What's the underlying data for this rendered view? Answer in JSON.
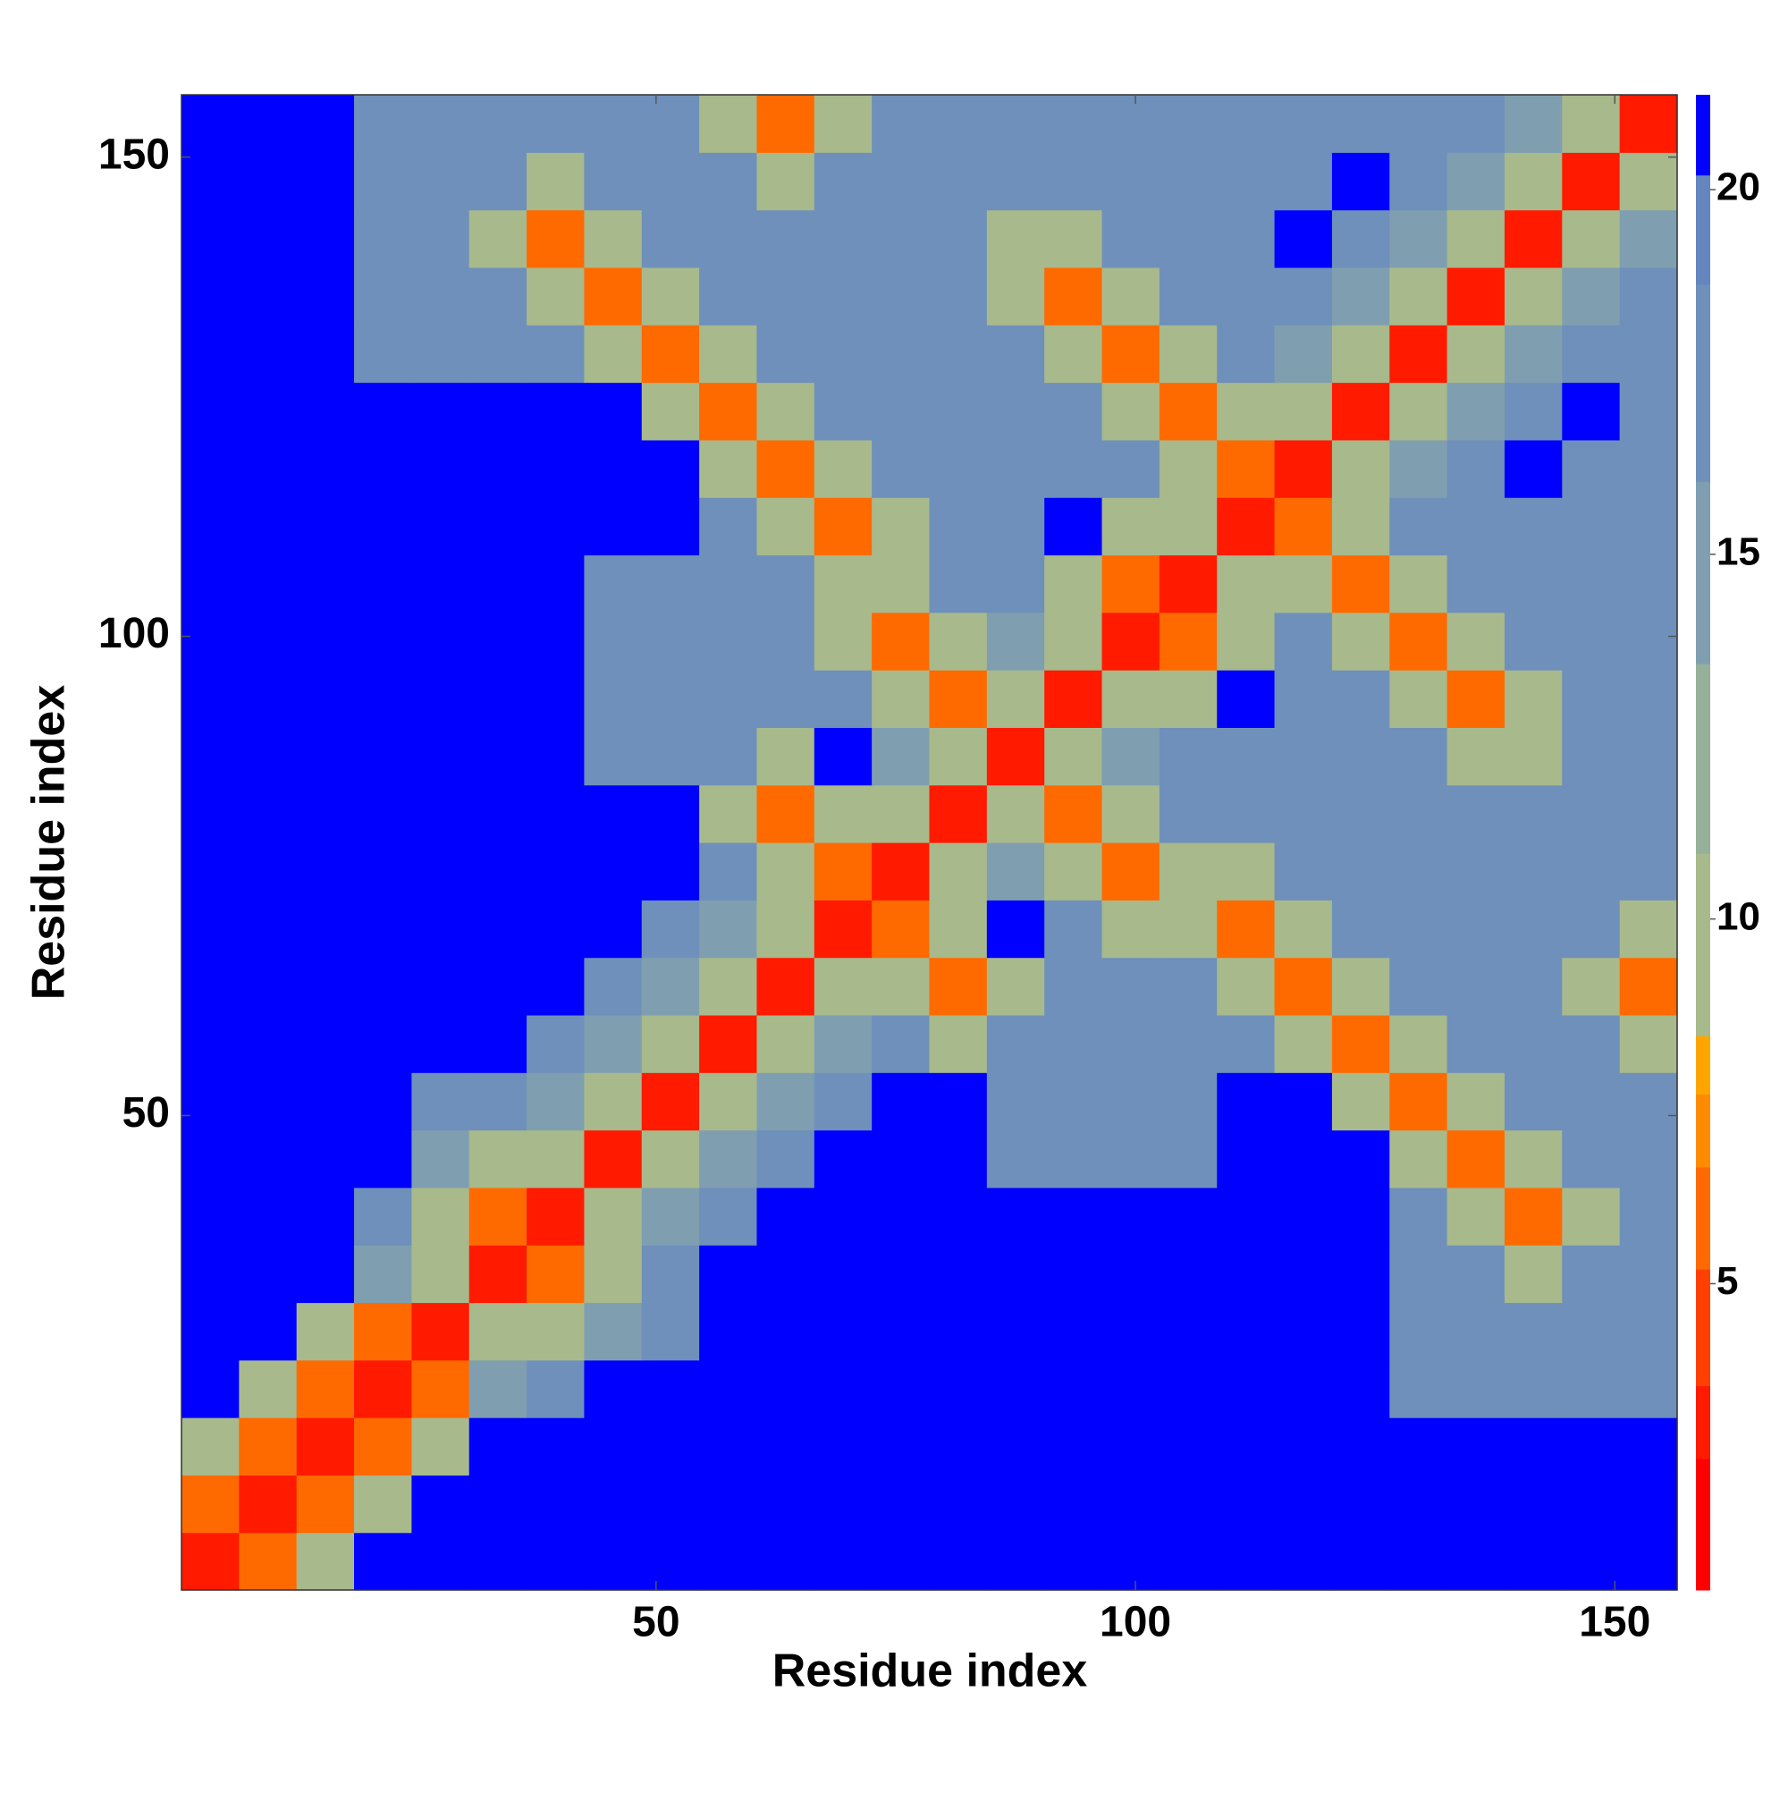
{
  "chart_data": {
    "type": "heatmap",
    "xlabel": "Residue index",
    "ylabel": "Residue index",
    "xlim": [
      0.5,
      156.5
    ],
    "ylim": [
      0.5,
      156.5
    ],
    "xticks": [
      50,
      100,
      150
    ],
    "yticks": [
      50,
      100,
      150
    ],
    "x": [
      3.5,
      9.5,
      15.5,
      21.5,
      27.5,
      33.5,
      39.5,
      45.5,
      51.5,
      57.5,
      63.5,
      69.5,
      75.5,
      81.5,
      87.5,
      93.5,
      99.5,
      105.5,
      111.5,
      117.5,
      123.5,
      129.5,
      135.5,
      141.5,
      147.5,
      153.5
    ],
    "y": [
      3.5,
      9.5,
      15.5,
      21.5,
      27.5,
      33.5,
      39.5,
      45.5,
      51.5,
      57.5,
      63.5,
      69.5,
      75.5,
      81.5,
      87.5,
      93.5,
      99.5,
      105.5,
      111.5,
      117.5,
      123.5,
      129.5,
      135.5,
      141.5,
      147.5,
      153.5
    ],
    "z": [
      [
        3,
        6,
        10,
        21,
        21,
        21,
        21,
        21,
        21,
        21,
        21,
        21,
        21,
        21,
        21,
        21,
        21,
        21,
        21,
        21,
        21,
        21,
        21,
        21,
        21,
        21
      ],
      [
        6,
        3,
        6,
        10,
        21,
        21,
        21,
        21,
        21,
        21,
        21,
        21,
        21,
        21,
        21,
        21,
        21,
        21,
        21,
        21,
        21,
        21,
        21,
        21,
        21,
        21
      ],
      [
        10,
        6,
        3,
        6,
        10,
        21,
        21,
        21,
        21,
        21,
        21,
        21,
        21,
        21,
        21,
        21,
        21,
        21,
        21,
        21,
        21,
        21,
        21,
        21,
        21,
        21
      ],
      [
        21,
        10,
        6,
        3,
        6,
        14,
        18,
        21,
        21,
        21,
        21,
        21,
        21,
        21,
        21,
        21,
        21,
        21,
        21,
        21,
        21,
        18,
        18,
        18,
        18,
        18
      ],
      [
        21,
        21,
        10,
        6,
        3,
        10,
        10,
        14,
        18,
        21,
        21,
        21,
        21,
        21,
        21,
        21,
        21,
        21,
        21,
        21,
        21,
        18,
        18,
        18,
        18,
        18
      ],
      [
        21,
        21,
        21,
        14,
        10,
        3,
        6,
        10,
        18,
        21,
        21,
        21,
        21,
        21,
        21,
        21,
        21,
        21,
        21,
        21,
        21,
        18,
        18,
        10,
        18,
        18
      ],
      [
        21,
        21,
        21,
        18,
        10,
        6,
        3,
        10,
        14,
        18,
        21,
        21,
        21,
        21,
        21,
        21,
        21,
        21,
        21,
        21,
        21,
        18,
        10,
        6,
        10,
        18
      ],
      [
        21,
        21,
        21,
        21,
        14,
        10,
        10,
        3,
        10,
        14,
        18,
        21,
        21,
        21,
        18,
        18,
        18,
        18,
        21,
        21,
        21,
        10,
        6,
        10,
        18,
        18
      ],
      [
        21,
        21,
        21,
        21,
        18,
        18,
        14,
        10,
        3,
        10,
        14,
        18,
        21,
        21,
        18,
        18,
        18,
        18,
        21,
        21,
        10,
        6,
        10,
        18,
        18,
        18
      ],
      [
        21,
        21,
        21,
        21,
        21,
        21,
        18,
        14,
        10,
        3,
        10,
        14,
        18,
        10,
        18,
        18,
        18,
        18,
        18,
        10,
        6,
        10,
        18,
        18,
        18,
        10
      ],
      [
        21,
        21,
        21,
        21,
        21,
        21,
        21,
        18,
        14,
        10,
        3,
        10,
        10,
        6,
        10,
        18,
        18,
        18,
        10,
        6,
        10,
        18,
        18,
        18,
        10,
        6
      ],
      [
        21,
        21,
        21,
        21,
        21,
        21,
        21,
        21,
        18,
        14,
        10,
        3,
        6,
        10,
        21,
        18,
        10,
        10,
        6,
        10,
        18,
        18,
        18,
        18,
        18,
        10
      ],
      [
        21,
        21,
        21,
        21,
        21,
        21,
        21,
        21,
        21,
        18,
        10,
        6,
        3,
        10,
        14,
        10,
        6,
        10,
        10,
        18,
        18,
        18,
        18,
        18,
        18,
        18
      ],
      [
        21,
        21,
        21,
        21,
        21,
        21,
        21,
        21,
        21,
        10,
        6,
        10,
        10,
        3,
        10,
        6,
        10,
        18,
        18,
        18,
        18,
        18,
        18,
        18,
        18,
        18
      ],
      [
        21,
        21,
        21,
        21,
        21,
        21,
        21,
        18,
        18,
        18,
        10,
        21,
        14,
        10,
        3,
        10,
        14,
        18,
        18,
        18,
        18,
        18,
        10,
        10,
        18,
        18
      ],
      [
        21,
        21,
        21,
        21,
        21,
        21,
        21,
        18,
        18,
        18,
        18,
        18,
        10,
        6,
        10,
        3,
        10,
        10,
        21,
        18,
        18,
        10,
        6,
        10,
        18,
        18
      ],
      [
        21,
        21,
        21,
        21,
        21,
        21,
        21,
        18,
        18,
        18,
        18,
        10,
        6,
        10,
        14,
        10,
        3,
        6,
        10,
        18,
        10,
        6,
        10,
        18,
        18,
        18
      ],
      [
        21,
        21,
        21,
        21,
        21,
        21,
        21,
        18,
        18,
        18,
        18,
        10,
        10,
        18,
        18,
        10,
        6,
        3,
        10,
        10,
        6,
        10,
        18,
        18,
        18,
        18
      ],
      [
        21,
        21,
        21,
        21,
        21,
        21,
        21,
        21,
        21,
        18,
        10,
        6,
        10,
        18,
        18,
        21,
        10,
        10,
        3,
        6,
        10,
        18,
        18,
        18,
        18,
        18
      ],
      [
        21,
        21,
        21,
        21,
        21,
        21,
        21,
        21,
        21,
        10,
        6,
        10,
        18,
        18,
        18,
        18,
        18,
        10,
        6,
        3,
        10,
        14,
        18,
        21,
        18,
        18
      ],
      [
        21,
        21,
        21,
        21,
        21,
        21,
        21,
        21,
        10,
        6,
        10,
        18,
        18,
        18,
        18,
        18,
        10,
        6,
        10,
        10,
        3,
        10,
        14,
        18,
        21,
        18
      ],
      [
        21,
        21,
        21,
        18,
        18,
        18,
        18,
        10,
        6,
        10,
        18,
        18,
        18,
        18,
        18,
        10,
        6,
        10,
        18,
        14,
        10,
        3,
        10,
        14,
        18,
        18
      ],
      [
        21,
        21,
        21,
        18,
        18,
        18,
        10,
        6,
        10,
        18,
        18,
        18,
        18,
        18,
        10,
        6,
        10,
        18,
        18,
        18,
        14,
        10,
        3,
        10,
        14,
        18
      ],
      [
        21,
        21,
        21,
        18,
        18,
        10,
        6,
        10,
        18,
        18,
        18,
        18,
        18,
        18,
        10,
        10,
        18,
        18,
        18,
        21,
        18,
        14,
        10,
        3,
        10,
        14
      ],
      [
        21,
        21,
        21,
        18,
        18,
        18,
        10,
        18,
        18,
        18,
        10,
        18,
        18,
        18,
        18,
        18,
        18,
        18,
        18,
        18,
        21,
        18,
        14,
        10,
        3,
        10
      ],
      [
        21,
        21,
        21,
        18,
        18,
        18,
        18,
        18,
        18,
        10,
        6,
        10,
        18,
        18,
        18,
        18,
        18,
        18,
        18,
        18,
        18,
        18,
        18,
        14,
        10,
        3
      ]
    ],
    "clim": [
      0.8,
      21.3
    ],
    "cticks": [
      5,
      10,
      15,
      20
    ],
    "colorscale": [
      [
        0.8,
        "#ff0000"
      ],
      [
        2.6,
        "#ff1a00"
      ],
      [
        3.6,
        "#ff4000"
      ],
      [
        5.2,
        "#ff6a00"
      ],
      [
        6.6,
        "#ff8c00"
      ],
      [
        7.6,
        "#ffa500"
      ],
      [
        8.4,
        "#a8b98c"
      ],
      [
        10.9,
        "#96b09a"
      ],
      [
        13.5,
        "#7f9fb0"
      ],
      [
        16,
        "#6f90bb"
      ],
      [
        18.7,
        "#6585be"
      ],
      [
        20.2,
        "#0000ff"
      ]
    ]
  }
}
